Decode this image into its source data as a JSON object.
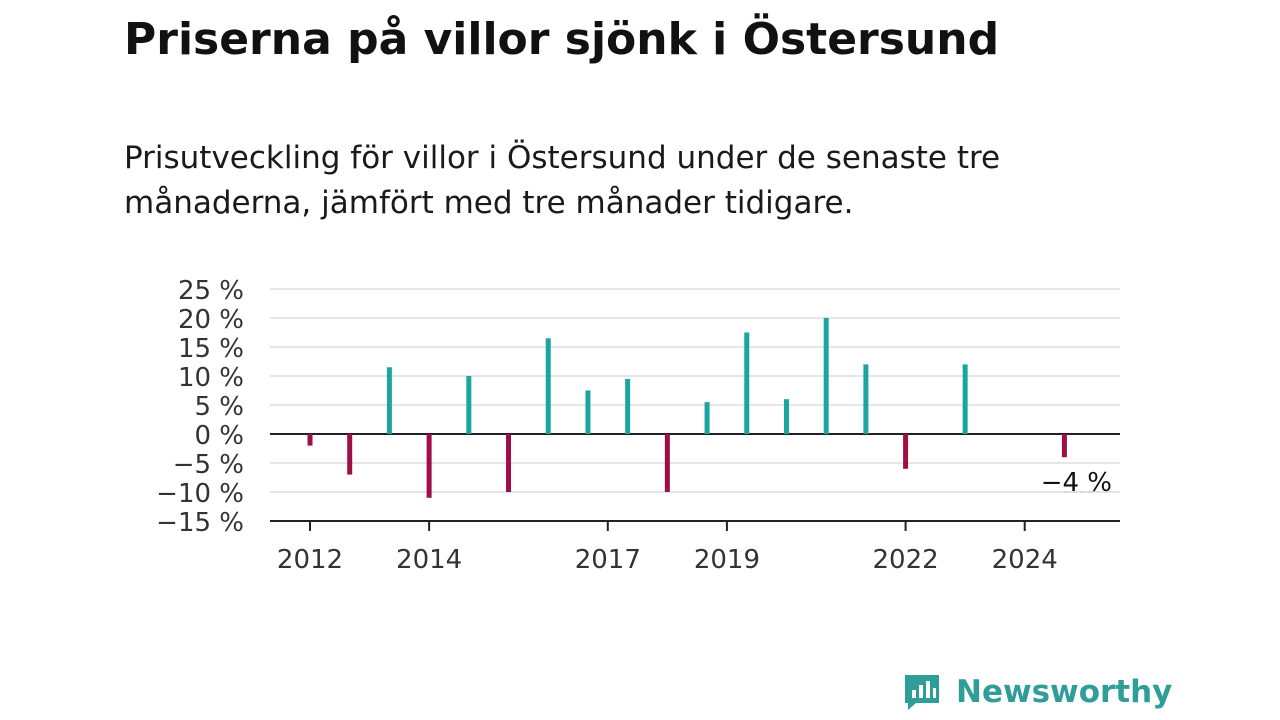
{
  "title": "Priserna på villor sjönk i Östersund",
  "subtitle": "Prisutveckling för villor i Östersund under de senaste tre månaderna, jämfört med tre månader tidigare.",
  "brand": {
    "name": "Newsworthy",
    "logo_icon": "newsworthy-logo-icon",
    "color": "#2f9d98"
  },
  "chart_data": {
    "type": "bar",
    "title": "Priserna på villor sjönk i Östersund",
    "x": [
      "2012-01",
      "2012-09",
      "2013-05",
      "2014-01",
      "2014-09",
      "2015-05",
      "2016-01",
      "2016-09",
      "2017-05",
      "2018-01",
      "2018-09",
      "2019-05",
      "2020-01",
      "2020-09",
      "2021-05",
      "2022-01",
      "2023-01",
      "2024-09"
    ],
    "values": [
      -2,
      -7,
      11.5,
      -11,
      10,
      -10,
      16.5,
      7.5,
      9.5,
      -10,
      5.5,
      17.5,
      6,
      20,
      12,
      -6,
      12,
      -4
    ],
    "positive_color": "#1aa5a0",
    "negative_color": "#a00e45",
    "yticks": [
      25,
      20,
      15,
      10,
      5,
      0,
      -5,
      -10,
      -15
    ],
    "ytick_labels": [
      "25 %",
      "20 %",
      "15 %",
      "10 %",
      "5 %",
      "0 %",
      "−5 %",
      "−10 %",
      "−15 %"
    ],
    "ylim": [
      -15,
      25
    ],
    "xticks": [
      2012,
      2014,
      2017,
      2019,
      2022,
      2024
    ],
    "xtick_labels": [
      "2012",
      "2014",
      "2017",
      "2019",
      "2022",
      "2024"
    ],
    "grid": true,
    "last_value_label": "−4 %"
  }
}
